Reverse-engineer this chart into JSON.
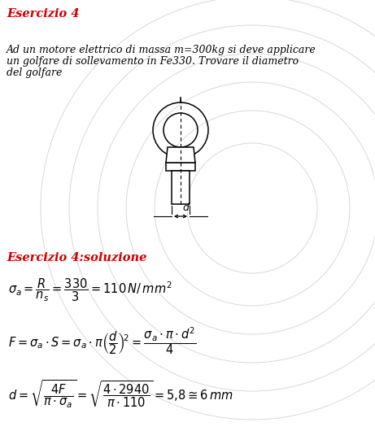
{
  "title": "Esercizio 4",
  "problem_text_line1": "Ad un motore elettrico di massa m=300kg si deve applicare",
  "problem_text_line2": "un golfare di sollevamento in Fe330. Trovare il diametro",
  "problem_text_line3": "del golfare",
  "solution_title": "Esercizio 4:soluzione",
  "red_color": "#cc0000",
  "black_color": "#000000",
  "bg_color": "#ffffff",
  "fig_width": 4.61,
  "fig_height": 5.46,
  "dpi": 100
}
